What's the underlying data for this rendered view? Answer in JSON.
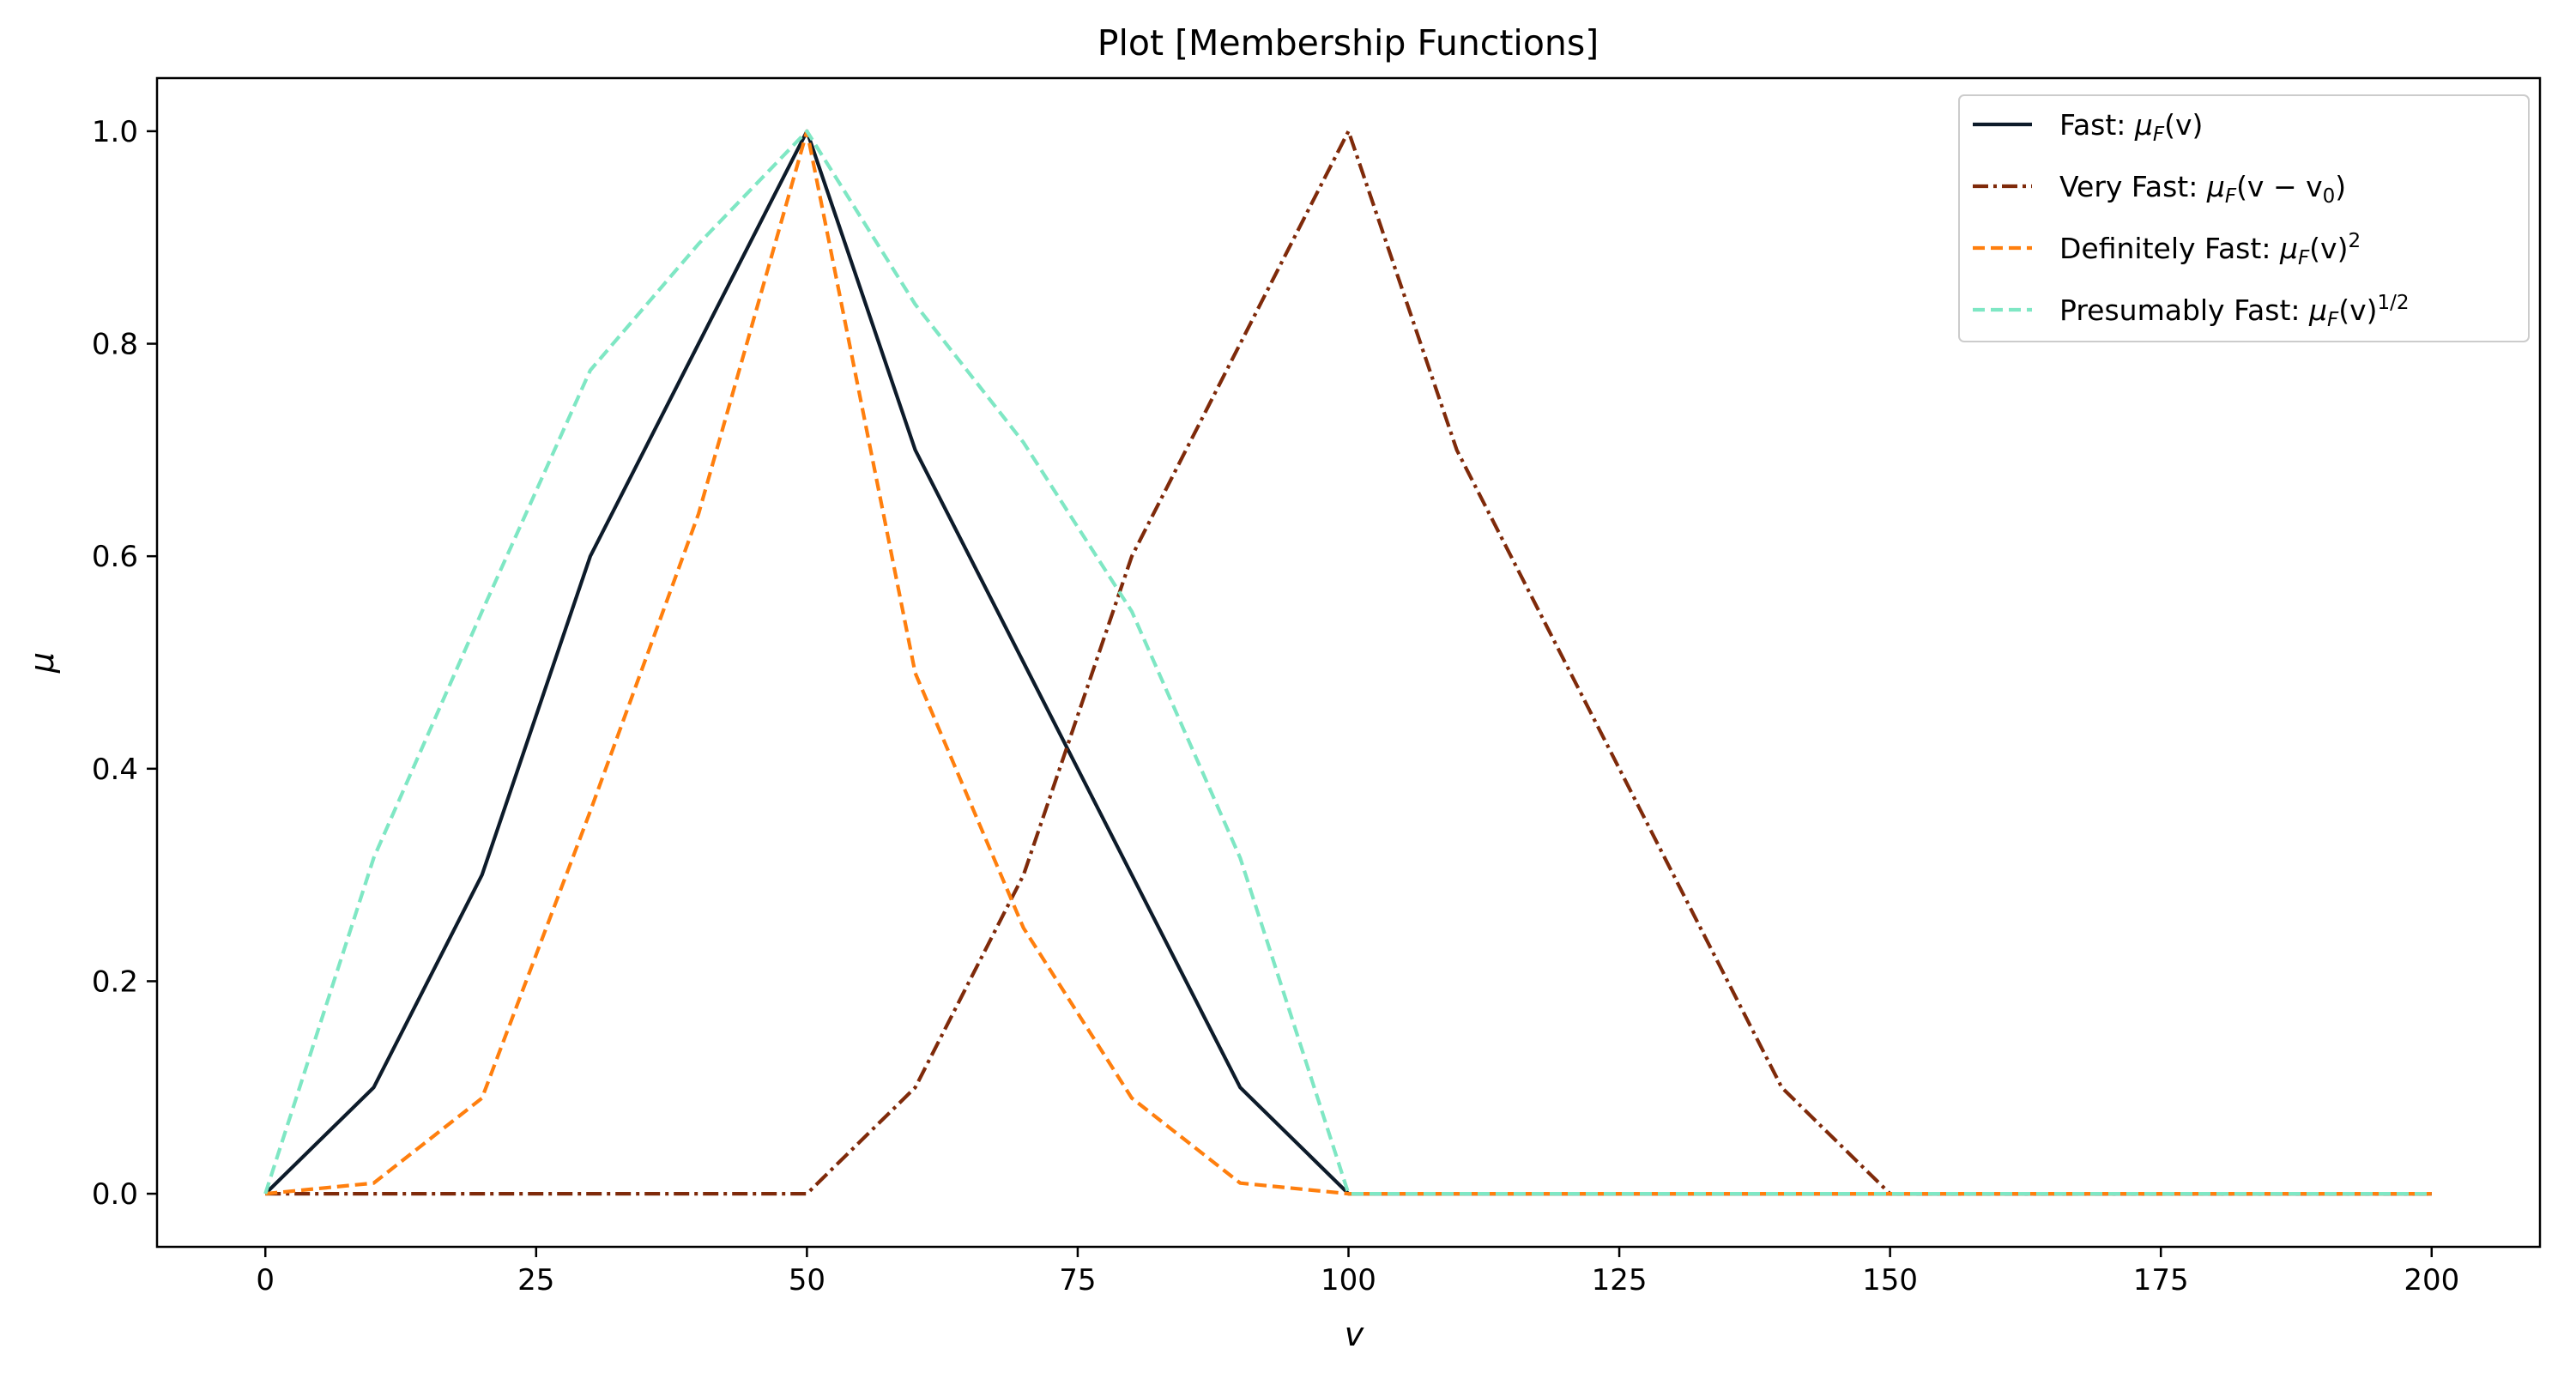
{
  "chart_data": {
    "type": "line",
    "title": "Plot [Membership Functions]",
    "xlabel": "v",
    "ylabel": "μ",
    "xlim": [
      -10,
      210
    ],
    "ylim": [
      -0.05,
      1.05
    ],
    "xticks": [
      0,
      25,
      50,
      75,
      100,
      125,
      150,
      175,
      200
    ],
    "yticks": [
      0.0,
      0.2,
      0.4,
      0.6,
      0.8,
      1.0
    ],
    "xtick_labels": [
      "0",
      "25",
      "50",
      "75",
      "100",
      "125",
      "150",
      "175",
      "200"
    ],
    "ytick_labels": [
      "0.0",
      "0.2",
      "0.4",
      "0.6",
      "0.8",
      "1.0"
    ],
    "grid": false,
    "legend_position": "top-right",
    "x": [
      0,
      10,
      20,
      30,
      40,
      50,
      60,
      70,
      80,
      90,
      100,
      110,
      120,
      130,
      140,
      150,
      160,
      170,
      180,
      190,
      200
    ],
    "series": [
      {
        "name": "Fast: μF(v)",
        "legend": {
          "prefix": "Fast: ",
          "math": "μ",
          "sub": "F",
          "after": "(v)",
          "sup": ""
        },
        "color": "#0d1b2a",
        "style": "solid",
        "values": [
          0,
          0.1,
          0.3,
          0.6,
          0.8,
          1.0,
          0.7,
          0.5,
          0.3,
          0.1,
          0,
          0,
          0,
          0,
          0,
          0,
          0,
          0,
          0,
          0,
          0
        ]
      },
      {
        "name": "Very Fast: μF(v − v0)",
        "legend": {
          "prefix": "Very Fast: ",
          "math": "μ",
          "sub": "F",
          "after": "(v − v",
          "sub2": "0",
          "after2": ")",
          "sup": ""
        },
        "color": "#7f2a0a",
        "style": "dashdot",
        "values": [
          0,
          0,
          0,
          0,
          0,
          0,
          0.1,
          0.3,
          0.6,
          0.8,
          1.0,
          0.7,
          0.5,
          0.3,
          0.1,
          0,
          0,
          0,
          0,
          0,
          0
        ]
      },
      {
        "name": "Definitely Fast: μF(v)2",
        "legend": {
          "prefix": "Definitely Fast: ",
          "math": "μ",
          "sub": "F",
          "after": "(v)",
          "sup": "2"
        },
        "color": "#ff7f0e",
        "style": "dashed",
        "values": [
          0,
          0.01,
          0.09,
          0.36,
          0.64,
          1.0,
          0.49,
          0.25,
          0.09,
          0.01,
          0,
          0,
          0,
          0,
          0,
          0,
          0,
          0,
          0,
          0,
          0
        ]
      },
      {
        "name": "Presumably Fast: μF(v)1/2",
        "legend": {
          "prefix": "Presumably Fast: ",
          "math": "μ",
          "sub": "F",
          "after": "(v)",
          "sup": "1/2"
        },
        "color": "#7fe7c4",
        "style": "dashed",
        "values": [
          0,
          0.316,
          0.548,
          0.775,
          0.894,
          1.0,
          0.837,
          0.707,
          0.548,
          0.316,
          0,
          0,
          0,
          0,
          0,
          0,
          0,
          0,
          0,
          0,
          0
        ]
      }
    ]
  }
}
